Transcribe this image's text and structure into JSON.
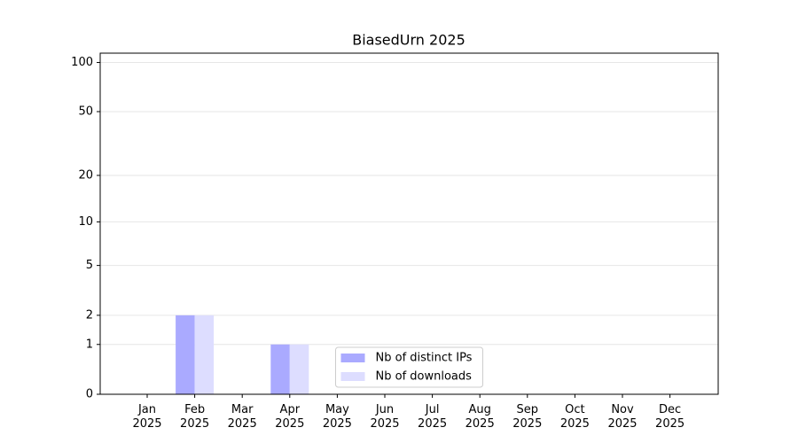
{
  "chart_data": {
    "type": "bar",
    "title": "BiasedUrn 2025",
    "categories": [
      "Jan 2025",
      "Feb 2025",
      "Mar 2025",
      "Apr 2025",
      "May 2025",
      "Jun 2025",
      "Jul 2025",
      "Aug 2025",
      "Sep 2025",
      "Oct 2025",
      "Nov 2025",
      "Dec 2025"
    ],
    "series": [
      {
        "name": "Nb of distinct IPs",
        "color": "#aaaaff",
        "values": [
          0,
          2,
          0,
          1,
          0,
          0,
          0,
          0,
          0,
          0,
          0,
          0
        ]
      },
      {
        "name": "Nb of downloads",
        "color": "#ddddff",
        "values": [
          0,
          2,
          0,
          1,
          0,
          0,
          0,
          0,
          0,
          0,
          0,
          0
        ]
      }
    ],
    "yscale": "symlog",
    "ylim": [
      0,
      114
    ],
    "yticks": [
      0,
      1,
      2,
      5,
      10,
      20,
      50,
      100
    ],
    "grid": true,
    "legend": "lower center"
  }
}
